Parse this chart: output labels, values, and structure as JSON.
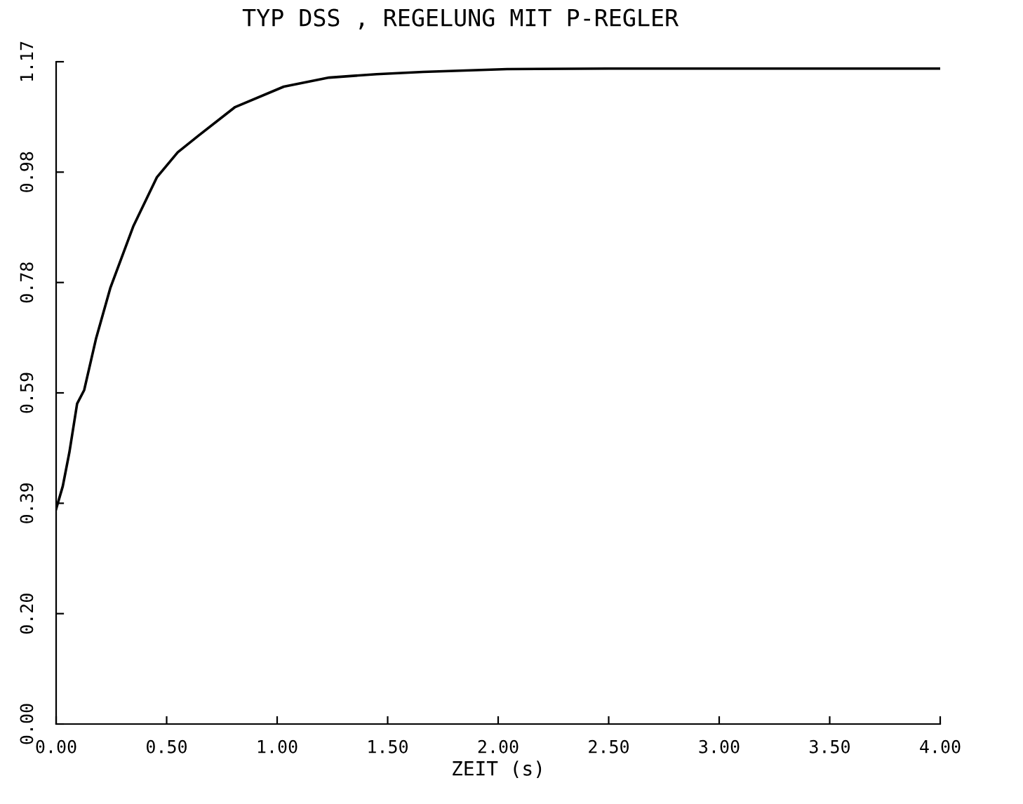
{
  "chart_data": {
    "type": "line",
    "title": "TYP DSS , REGELUNG MIT P-REGLER",
    "xlabel": "ZEIT (s)",
    "x": [
      0,
      0.03,
      0.06,
      0.095,
      0.127,
      0.18,
      0.245,
      0.35,
      0.456,
      0.55,
      0.646,
      0.81,
      1.03,
      1.235,
      1.45,
      1.66,
      2.04,
      2.5,
      3.0,
      3.5,
      4.0
    ],
    "series": [
      {
        "color": "#000000",
        "values": [
          0.38,
          0.42,
          0.48,
          0.566,
          0.59,
          0.68,
          0.77,
          0.88,
          0.966,
          1.01,
          1.04,
          1.09,
          1.126,
          1.142,
          1.148,
          1.152,
          1.157,
          1.158,
          1.158,
          1.158,
          1.158
        ]
      }
    ],
    "xlim": [
      0,
      4
    ],
    "xticks": [
      {
        "value": 0,
        "label": "0.00"
      },
      {
        "value": 0.5,
        "label": "0.50"
      },
      {
        "value": 1,
        "label": "1.00"
      },
      {
        "value": 1.5,
        "label": "1.50"
      },
      {
        "value": 2,
        "label": "2.00"
      },
      {
        "value": 2.5,
        "label": "2.50"
      },
      {
        "value": 3,
        "label": "3.00"
      },
      {
        "value": 3.5,
        "label": "3.50"
      },
      {
        "value": 4,
        "label": "4.00"
      }
    ],
    "ylim": [
      0,
      1.17
    ],
    "yticks": [
      {
        "value": 0,
        "label": "0.00"
      },
      {
        "value": 0.195,
        "label": "0.20"
      },
      {
        "value": 0.39,
        "label": "0.39"
      },
      {
        "value": 0.585,
        "label": "0.59"
      },
      {
        "value": 0.78,
        "label": "0.78"
      },
      {
        "value": 0.975,
        "label": "0.98"
      },
      {
        "value": 1.17,
        "label": "1.17"
      }
    ],
    "grid": false,
    "legend": false
  }
}
